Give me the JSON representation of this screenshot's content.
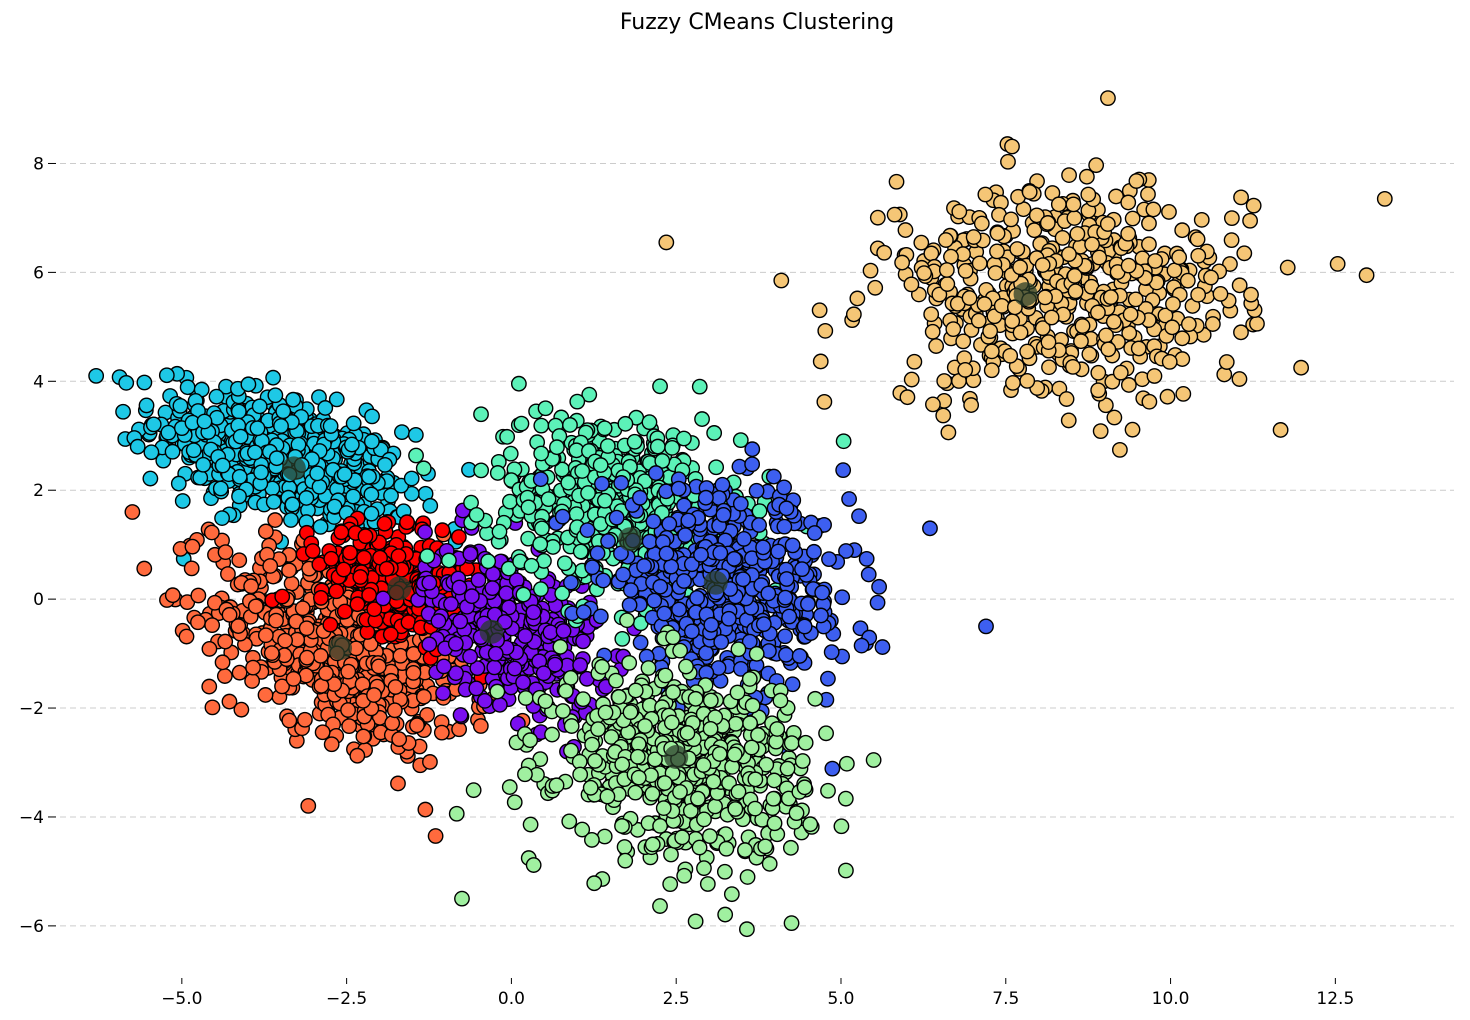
{
  "chart_data": {
    "type": "scatter",
    "title": "Fuzzy CMeans Clustering",
    "xlabel": "",
    "ylabel": "",
    "xlim": [
      -7.0,
      14.3
    ],
    "ylim": [
      -6.7,
      9.9
    ],
    "x_ticks": [
      -5.0,
      -2.5,
      0.0,
      2.5,
      5.0,
      7.5,
      10.0,
      12.5
    ],
    "x_tick_labels": [
      "−5.0",
      "−2.5",
      "0.0",
      "2.5",
      "5.0",
      "7.5",
      "10.0",
      "12.5"
    ],
    "y_ticks": [
      -6,
      -4,
      -2,
      0,
      2,
      4,
      6,
      8
    ],
    "y_tick_labels": [
      "−6",
      "−4",
      "−2",
      "0",
      "2",
      "4",
      "6",
      "8"
    ],
    "grid": "y dashed",
    "legend": "none",
    "clusters": [
      {
        "color": "#1ec8e6",
        "center": [
          -3.5,
          2.6
        ],
        "spread": [
          0.95,
          0.65
        ],
        "rho": -0.5,
        "n": 620
      },
      {
        "color": "#ff6a3d",
        "center": [
          -2.6,
          -0.9
        ],
        "spread": [
          0.95,
          0.9
        ],
        "rho": -0.45,
        "n": 640
      },
      {
        "color": "#ff0000",
        "center": [
          -1.7,
          0.3
        ],
        "spread": [
          0.6,
          0.5
        ],
        "rho": -0.4,
        "n": 320
      },
      {
        "color": "#7a0ff0",
        "center": [
          0.0,
          -0.6
        ],
        "spread": [
          0.65,
          0.75
        ],
        "rho": -0.35,
        "n": 380
      },
      {
        "color": "#5cf2b8",
        "center": [
          1.6,
          1.7
        ],
        "spread": [
          0.95,
          0.85
        ],
        "rho": -0.2,
        "n": 560
      },
      {
        "color": "#3d5ff0",
        "center": [
          3.3,
          0.2
        ],
        "spread": [
          0.95,
          0.9
        ],
        "rho": -0.2,
        "n": 560
      },
      {
        "color": "#a0f0a0",
        "center": [
          2.6,
          -3.0
        ],
        "spread": [
          0.95,
          0.85
        ],
        "rho": -0.1,
        "n": 620
      },
      {
        "color": "#f5c676",
        "center": [
          8.4,
          5.6
        ],
        "spread": [
          1.4,
          1.0
        ],
        "rho": 0.0,
        "n": 540
      }
    ],
    "outliers": [
      {
        "x": 2.35,
        "y": 6.55,
        "color": "#f5c676"
      },
      {
        "x": 9.05,
        "y": 9.2,
        "color": "#f5c676"
      },
      {
        "x": 13.25,
        "y": 7.35,
        "color": "#f5c676"
      },
      {
        "x": 7.2,
        "y": -0.5,
        "color": "#3d5ff0"
      },
      {
        "x": 6.35,
        "y": 1.3,
        "color": "#3d5ff0"
      },
      {
        "x": -6.3,
        "y": 4.1,
        "color": "#1ec8e6"
      },
      {
        "x": -5.75,
        "y": 1.6,
        "color": "#ff6a3d"
      },
      {
        "x": -1.15,
        "y": -4.35,
        "color": "#ff6a3d"
      },
      {
        "x": -0.75,
        "y": -5.5,
        "color": "#a0f0a0"
      },
      {
        "x": 4.25,
        "y": -5.95,
        "color": "#a0f0a0"
      }
    ],
    "centroids": [
      {
        "x": -3.3,
        "y": 2.4
      },
      {
        "x": -2.6,
        "y": -0.9
      },
      {
        "x": -1.7,
        "y": 0.2
      },
      {
        "x": -0.3,
        "y": -0.6
      },
      {
        "x": 1.8,
        "y": 1.1
      },
      {
        "x": 3.1,
        "y": 0.3
      },
      {
        "x": 2.5,
        "y": -2.9
      },
      {
        "x": 7.8,
        "y": 5.6
      }
    ]
  }
}
